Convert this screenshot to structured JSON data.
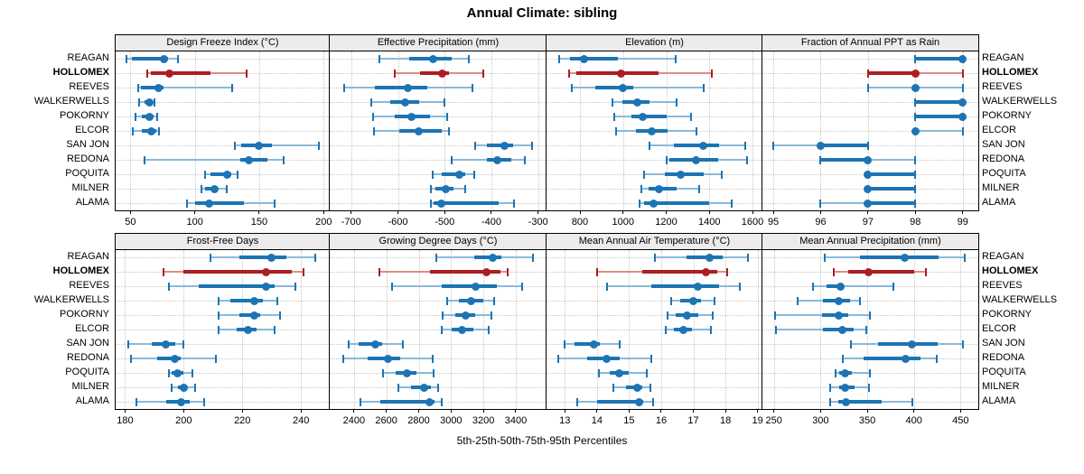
{
  "title": "Annual Climate: sibling",
  "caption": "5th-25th-50th-75th-95th Percentiles",
  "colors": {
    "blue": "#1c74b4",
    "blue_light": "#8ab9da",
    "red": "#ab1e22",
    "red_light": "#d98f88",
    "strip_bg": "#ececec",
    "grid": "#c6c6c6"
  },
  "chart_data": {
    "type": "trellis-percentile-dotplot",
    "percentiles": [
      5,
      25,
      50,
      75,
      95
    ],
    "highlight": "HOLLOMEX",
    "stations": [
      "REAGAN",
      "HOLLOMEX",
      "REEVES",
      "WALKERWELLS",
      "POKORNY",
      "ELCOR",
      "SAN JON",
      "REDONA",
      "POQUITA",
      "MILNER",
      "ALAMA"
    ],
    "panels": [
      {
        "title": "Design Freeze Index (°C)",
        "xlim": [
          38.5,
          204.7
        ],
        "ticks": [
          50,
          100,
          150,
          200
        ],
        "values": [
          [
            47,
            51,
            76,
            79,
            87
          ],
          [
            63,
            66,
            80,
            112,
            140
          ],
          [
            56,
            58,
            72,
            76,
            129
          ],
          [
            57,
            61,
            65,
            67,
            69
          ],
          [
            54,
            59,
            65,
            68,
            71
          ],
          [
            52,
            59,
            66,
            70,
            72
          ],
          [
            131,
            136,
            150,
            160,
            196
          ],
          [
            61,
            135,
            142,
            156,
            169
          ],
          [
            108,
            112,
            125,
            128,
            133
          ],
          [
            105,
            108,
            115,
            118,
            125
          ],
          [
            94,
            100,
            111,
            138,
            162
          ]
        ]
      },
      {
        "title": "Effective Precipitation (mm)",
        "xlim": [
          -746,
          -282
        ],
        "ticks": [
          -700,
          -600,
          -500,
          -400,
          -300
        ],
        "values": [
          [
            -640,
            -575,
            -524,
            -485,
            -449
          ],
          [
            -607,
            -553,
            -505,
            -490,
            -417
          ],
          [
            -715,
            -649,
            -578,
            -537,
            -440
          ],
          [
            -657,
            -616,
            -584,
            -554,
            -501
          ],
          [
            -654,
            -607,
            -571,
            -532,
            -494
          ],
          [
            -652,
            -597,
            -556,
            -506,
            -490
          ],
          [
            -434,
            -409,
            -372,
            -353,
            -312
          ],
          [
            -485,
            -409,
            -387,
            -358,
            -329
          ],
          [
            -526,
            -506,
            -469,
            -456,
            -436
          ],
          [
            -530,
            -519,
            -498,
            -481,
            -456
          ],
          [
            -530,
            -524,
            -507,
            -385,
            -351
          ]
        ]
      },
      {
        "title": "Elevation (m)",
        "xlim": [
          645,
          1646
        ],
        "ticks": [
          800,
          1000,
          1200,
          1400,
          1600
        ],
        "values": [
          [
            705,
            754,
            820,
            977,
            1242
          ],
          [
            750,
            782,
            991,
            1166,
            1410
          ],
          [
            761,
            873,
            1001,
            1047,
            1375
          ],
          [
            949,
            998,
            1065,
            1124,
            1249
          ],
          [
            959,
            1040,
            1090,
            1201,
            1316
          ],
          [
            967,
            1061,
            1135,
            1208,
            1340
          ],
          [
            1124,
            1235,
            1372,
            1445,
            1568
          ],
          [
            1200,
            1215,
            1340,
            1440,
            1573
          ],
          [
            1099,
            1194,
            1266,
            1375,
            1456
          ],
          [
            1085,
            1117,
            1168,
            1249,
            1354
          ],
          [
            1075,
            1096,
            1140,
            1400,
            1503
          ]
        ]
      },
      {
        "title": "Fraction of Annual PPT as Rain",
        "xlim": [
          94.77,
          99.33
        ],
        "ticks": [
          95,
          96,
          97,
          98,
          99
        ],
        "values": [
          [
            98,
            98,
            99,
            99,
            99
          ],
          [
            97,
            97,
            98,
            98,
            99
          ],
          [
            97,
            98,
            98,
            98,
            99
          ],
          [
            98,
            98,
            99,
            99,
            99
          ],
          [
            98,
            98,
            99,
            99,
            99
          ],
          [
            98,
            98,
            98,
            98,
            99
          ],
          [
            95,
            96,
            96,
            97,
            97
          ],
          [
            96,
            96,
            97,
            97,
            98
          ],
          [
            97,
            97,
            97,
            98,
            98
          ],
          [
            97,
            97,
            97,
            98,
            98
          ],
          [
            96,
            97,
            97,
            98,
            98
          ]
        ]
      },
      {
        "title": "Frost-Free Days",
        "xlim": [
          176.8,
          249.8
        ],
        "ticks": [
          180,
          200,
          220,
          240
        ],
        "values": [
          [
            209,
            219,
            230,
            235,
            245
          ],
          [
            193,
            200,
            228,
            237,
            241
          ],
          [
            195,
            205,
            228,
            231,
            238
          ],
          [
            212,
            216,
            224,
            227,
            232
          ],
          [
            212,
            219,
            224,
            226,
            233
          ],
          [
            212,
            218,
            222,
            225,
            231
          ],
          [
            181,
            189,
            194,
            197,
            200
          ],
          [
            182,
            191,
            197,
            199,
            211
          ],
          [
            195,
            196,
            198,
            200,
            203
          ],
          [
            196,
            198,
            200,
            201,
            204
          ],
          [
            184,
            194,
            199,
            202,
            207
          ]
        ]
      },
      {
        "title": "Growing Degree Days (°C)",
        "xlim": [
          2250,
          3590
        ],
        "ticks": [
          2400,
          2600,
          2800,
          3000,
          3200,
          3400
        ],
        "values": [
          [
            2910,
            3145,
            3255,
            3310,
            3505
          ],
          [
            2555,
            2870,
            3220,
            3305,
            3350
          ],
          [
            2635,
            2940,
            3150,
            3285,
            3440
          ],
          [
            2975,
            3050,
            3125,
            3200,
            3265
          ],
          [
            2950,
            3025,
            3090,
            3150,
            3250
          ],
          [
            2940,
            3005,
            3070,
            3135,
            3230
          ],
          [
            2365,
            2430,
            2530,
            2575,
            2700
          ],
          [
            2335,
            2485,
            2610,
            2685,
            2885
          ],
          [
            2580,
            2655,
            2730,
            2785,
            2890
          ],
          [
            2675,
            2755,
            2835,
            2875,
            2920
          ],
          [
            2440,
            2560,
            2865,
            2895,
            2945
          ]
        ]
      },
      {
        "title": "Mean Annual Air Temperature (°C)",
        "xlim": [
          12.43,
          19.15
        ],
        "ticks": [
          13,
          14,
          15,
          16,
          17,
          18,
          19
        ],
        "values": [
          [
            15.8,
            16.8,
            17.5,
            17.9,
            18.7
          ],
          [
            14.0,
            15.4,
            17.4,
            17.75,
            18.05
          ],
          [
            14.3,
            15.7,
            17.15,
            17.8,
            18.45
          ],
          [
            16.3,
            16.6,
            17.0,
            17.25,
            17.65
          ],
          [
            16.2,
            16.45,
            16.8,
            17.15,
            17.6
          ],
          [
            16.15,
            16.4,
            16.7,
            16.95,
            17.55
          ],
          [
            13.0,
            13.3,
            13.9,
            14.1,
            14.7
          ],
          [
            12.8,
            13.7,
            14.3,
            14.7,
            15.7
          ],
          [
            14.05,
            14.4,
            14.7,
            15.0,
            15.55
          ],
          [
            14.5,
            14.9,
            15.25,
            15.4,
            15.65
          ],
          [
            13.4,
            14.0,
            15.3,
            15.45,
            15.75
          ]
        ]
      },
      {
        "title": "Mean Annual Precipitation (mm)",
        "xlim": [
          237.7,
          469
        ],
        "ticks": [
          250,
          300,
          350,
          400,
          450
        ],
        "values": [
          [
            304,
            342,
            390,
            426,
            454
          ],
          [
            314,
            330,
            351,
            400,
            413
          ],
          [
            292,
            306,
            321,
            325,
            378
          ],
          [
            275,
            303,
            319,
            332,
            342
          ],
          [
            251,
            302,
            319,
            330,
            353
          ],
          [
            252,
            303,
            323,
            335,
            349
          ],
          [
            333,
            362,
            398,
            425,
            453
          ],
          [
            324,
            346,
            391,
            407,
            424
          ],
          [
            316,
            320,
            326,
            334,
            353
          ],
          [
            310,
            320,
            326,
            336,
            352
          ],
          [
            310,
            319,
            327,
            365,
            398
          ]
        ]
      }
    ]
  }
}
